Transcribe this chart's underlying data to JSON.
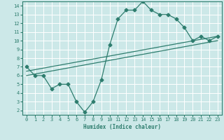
{
  "xlabel": "Humidex (Indice chaleur)",
  "xlim": [
    -0.5,
    23.5
  ],
  "ylim": [
    1.5,
    14.5
  ],
  "xticks": [
    0,
    1,
    2,
    3,
    4,
    5,
    6,
    7,
    8,
    9,
    10,
    11,
    12,
    13,
    14,
    15,
    16,
    17,
    18,
    19,
    20,
    21,
    22,
    23
  ],
  "yticks": [
    2,
    3,
    4,
    5,
    6,
    7,
    8,
    9,
    10,
    11,
    12,
    13,
    14
  ],
  "bg_color": "#cce8e8",
  "grid_color": "#ffffff",
  "line_color": "#2e7d6e",
  "line1_x": [
    0,
    1,
    2,
    3,
    4,
    5,
    6,
    7,
    8,
    9,
    10,
    11,
    12,
    13,
    14,
    15,
    16,
    17,
    18,
    19,
    20,
    21,
    22,
    23
  ],
  "line1_y": [
    7,
    6,
    6,
    4.5,
    5,
    5,
    3,
    1.8,
    3,
    5.5,
    9.5,
    12.5,
    13.5,
    13.5,
    14.5,
    13.5,
    13,
    13,
    12.5,
    11.5,
    10,
    10.5,
    10,
    10.5
  ],
  "line2_x": [
    0,
    23
  ],
  "line2_y": [
    6.5,
    10.5
  ],
  "line3_x": [
    0,
    23
  ],
  "line3_y": [
    6.0,
    10.0
  ],
  "marker": "D",
  "markersize": 2.5,
  "linewidth": 0.9
}
